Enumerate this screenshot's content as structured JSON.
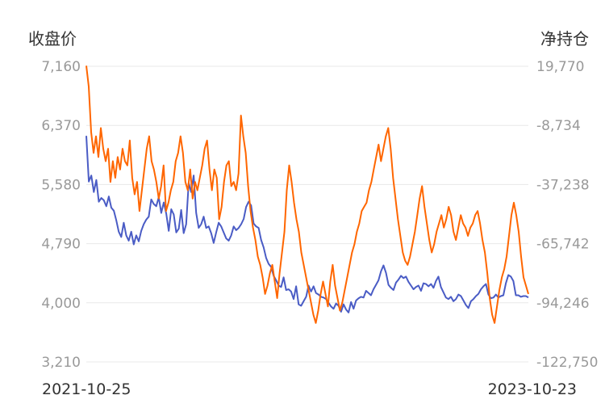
{
  "chart_data": {
    "type": "line",
    "title": "",
    "left_axis": {
      "title": "收盘价",
      "ticks": [
        "7,160",
        "6,370",
        "5,580",
        "4,790",
        "4,000",
        "3,210"
      ],
      "range": [
        3210,
        7160
      ]
    },
    "right_axis": {
      "title": "净持仓",
      "ticks": [
        "19,770",
        "-8,734",
        "-37,238",
        "-65,742",
        "-94,246",
        "-122,750"
      ],
      "range": [
        -122750,
        19770
      ]
    },
    "x_labels": {
      "start": "2021-10-25",
      "end": "2023-10-23"
    },
    "grid": true,
    "legend": "none",
    "series": [
      {
        "axis": "left",
        "color": "#4a5cc5",
        "values": [
          6230,
          5620,
          5700,
          5480,
          5640,
          5350,
          5400,
          5370,
          5290,
          5420,
          5270,
          5230,
          5100,
          4950,
          4880,
          5070,
          4900,
          4830,
          4950,
          4780,
          4900,
          4820,
          4960,
          5050,
          5110,
          5150,
          5380,
          5320,
          5290,
          5410,
          5200,
          5340,
          5190,
          4960,
          5250,
          5180,
          4940,
          4990,
          5240,
          4930,
          5050,
          5600,
          5480,
          5700,
          5200,
          5000,
          5050,
          5150,
          5000,
          5020,
          4930,
          4800,
          4940,
          5070,
          5020,
          4940,
          4860,
          4830,
          4900,
          5020,
          4970,
          5000,
          5050,
          5120,
          5280,
          5350,
          5300,
          5060,
          5020,
          5000,
          4840,
          4740,
          4600,
          4520,
          4480,
          4360,
          4300,
          4230,
          4210,
          4340,
          4170,
          4180,
          4150,
          4050,
          4220,
          3980,
          3960,
          4020,
          4080,
          4230,
          4150,
          4220,
          4130,
          4110,
          4080,
          4070,
          4050,
          4000,
          3950,
          3920,
          3990,
          3960,
          3880,
          3980,
          3910,
          3870,
          4010,
          3920,
          4030,
          4060,
          4080,
          4070,
          4160,
          4130,
          4100,
          4180,
          4240,
          4300,
          4420,
          4500,
          4400,
          4240,
          4200,
          4170,
          4270,
          4310,
          4360,
          4330,
          4350,
          4280,
          4230,
          4180,
          4210,
          4230,
          4160,
          4260,
          4250,
          4220,
          4250,
          4200,
          4290,
          4350,
          4210,
          4140,
          4070,
          4050,
          4080,
          4020,
          4050,
          4110,
          4090,
          4030,
          3970,
          3930,
          4020,
          4050,
          4090,
          4120,
          4180,
          4220,
          4250,
          4110,
          4060,
          4070,
          4110,
          4070,
          4090,
          4100,
          4260,
          4370,
          4350,
          4290,
          4100,
          4100,
          4080,
          4090,
          4090,
          4070
        ]
      },
      {
        "axis": "right",
        "color": "#ff6600",
        "values": [
          20000,
          10000,
          -12000,
          -22000,
          -14000,
          -24000,
          -10000,
          -20000,
          -26000,
          -20000,
          -36000,
          -26000,
          -34000,
          -24000,
          -30000,
          -20000,
          -26000,
          -28000,
          -16000,
          -34000,
          -42000,
          -36000,
          -50000,
          -40000,
          -30000,
          -20000,
          -14000,
          -26000,
          -30000,
          -36000,
          -44000,
          -38000,
          -28000,
          -50000,
          -46000,
          -40000,
          -36000,
          -26000,
          -22000,
          -14000,
          -22000,
          -36000,
          -40000,
          -30000,
          -44000,
          -36000,
          -40000,
          -34000,
          -28000,
          -20000,
          -16000,
          -30000,
          -40000,
          -30000,
          -34000,
          -54000,
          -48000,
          -36000,
          -28000,
          -26000,
          -38000,
          -36000,
          -40000,
          -32000,
          -4000,
          -14000,
          -22000,
          -38000,
          -50000,
          -58000,
          -64000,
          -72000,
          -76000,
          -82000,
          -90000,
          -86000,
          -80000,
          -76000,
          -84000,
          -92000,
          -80000,
          -70000,
          -60000,
          -40000,
          -28000,
          -36000,
          -46000,
          -54000,
          -60000,
          -70000,
          -76000,
          -82000,
          -88000,
          -94000,
          -100000,
          -104000,
          -98000,
          -90000,
          -84000,
          -90000,
          -96000,
          -84000,
          -76000,
          -86000,
          -92000,
          -98000,
          -94000,
          -88000,
          -82000,
          -76000,
          -70000,
          -66000,
          -60000,
          -56000,
          -50000,
          -48000,
          -46000,
          -40000,
          -36000,
          -30000,
          -24000,
          -18000,
          -26000,
          -20000,
          -14000,
          -10000,
          -20000,
          -34000,
          -44000,
          -54000,
          -62000,
          -70000,
          -74000,
          -76000,
          -72000,
          -66000,
          -60000,
          -52000,
          -44000,
          -38000,
          -48000,
          -56000,
          -64000,
          -70000,
          -66000,
          -60000,
          -56000,
          -52000,
          -58000,
          -54000,
          -48000,
          -52000,
          -60000,
          -64000,
          -58000,
          -52000,
          -56000,
          -58000,
          -62000,
          -58000,
          -56000,
          -52000,
          -50000,
          -56000,
          -64000,
          -70000,
          -80000,
          -92000,
          -100000,
          -104000,
          -96000,
          -88000,
          -82000,
          -78000,
          -72000,
          -62000,
          -52000,
          -46000,
          -52000,
          -60000,
          -72000,
          -82000,
          -86000,
          -90000
        ]
      }
    ]
  }
}
